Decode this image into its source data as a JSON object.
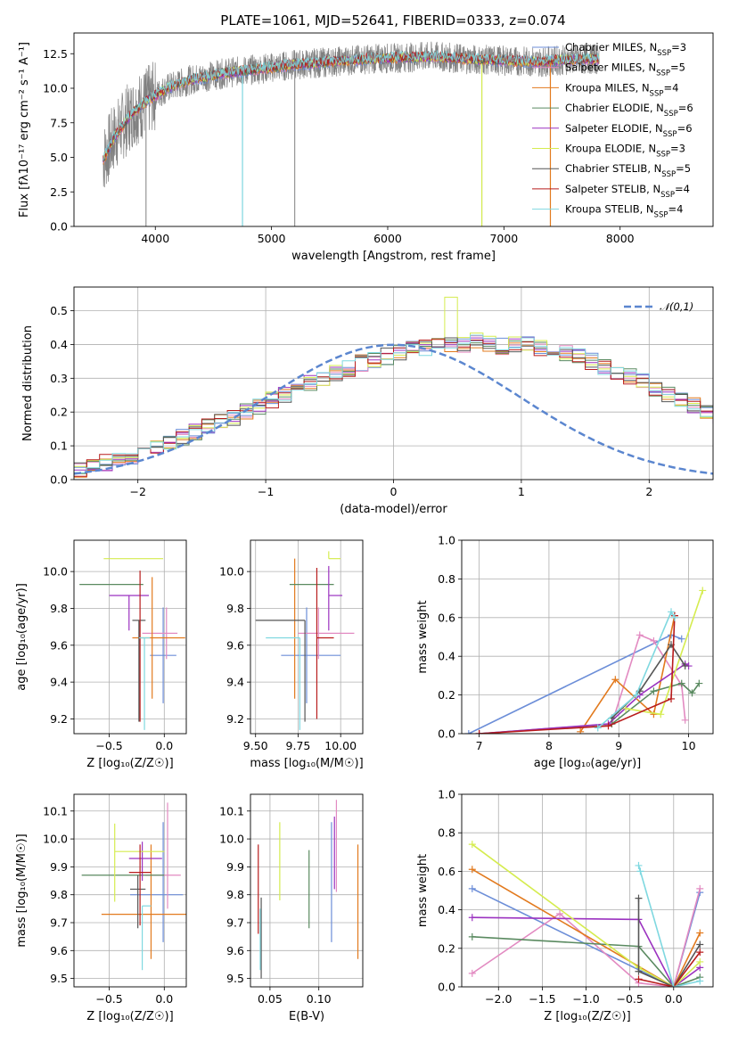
{
  "figure": {
    "title": "PLATE=1061, MJD=52641, FIBERID=0333, z=0.074"
  },
  "chart_data": [
    {
      "id": "spectrum",
      "type": "line",
      "xlabel": "wavelength [Angstrom, rest frame]",
      "ylabel": "Flux [fλ10⁻¹⁷ erg cm⁻² s⁻¹ A⁻¹]",
      "xlim": [
        3300,
        8800
      ],
      "ylim": [
        0,
        14
      ],
      "xticks": [
        4000,
        5000,
        6000,
        7000,
        8000
      ],
      "yticks": [
        0.0,
        2.5,
        5.0,
        7.5,
        10.0,
        12.5
      ],
      "grid": false,
      "legend_position": "right",
      "data_continuum": {
        "x": [
          3550,
          3650,
          3800,
          3950,
          4100,
          4300,
          4600,
          4900,
          5200,
          5500,
          5800,
          6100,
          6400,
          6700,
          7000,
          7300,
          7600,
          7800
        ],
        "y": [
          4.8,
          6.5,
          8.2,
          9.2,
          10.0,
          10.6,
          11.1,
          11.4,
          11.7,
          11.9,
          12.1,
          12.2,
          12.3,
          12.1,
          12.0,
          11.9,
          12.1,
          12.1
        ]
      },
      "spectrum_range": [
        3550,
        7820
      ],
      "absorption_lines": [
        {
          "x": 4750,
          "y": 0.0
        },
        {
          "x": 5200,
          "y": 0.0
        },
        {
          "x": 3920,
          "y": 0.0
        },
        {
          "x": 6810,
          "y": 0.0
        },
        {
          "x": 7400,
          "y": 0.0
        }
      ],
      "series": [
        {
          "label": "Chabrier MILES, N",
          "sub": "SSP",
          "suffix": "=3",
          "color": "#6c8ed8"
        },
        {
          "label": "Salpeter MILES, N",
          "sub": "SSP",
          "suffix": "=5",
          "color": "#e28ac1"
        },
        {
          "label": "Kroupa MILES, N",
          "sub": "SSP",
          "suffix": "=4",
          "color": "#e27a1e"
        },
        {
          "label": "Chabrier ELODIE, N",
          "sub": "SSP",
          "suffix": "=6",
          "color": "#5a8a60"
        },
        {
          "label": "Salpeter ELODIE, N",
          "sub": "SSP",
          "suffix": "=6",
          "color": "#9b32c0"
        },
        {
          "label": "Kroupa ELODIE, N",
          "sub": "SSP",
          "suffix": "=3",
          "color": "#d5ec4f"
        },
        {
          "label": "Chabrier STELIB, N",
          "sub": "SSP",
          "suffix": "=5",
          "color": "#555555"
        },
        {
          "label": "Salpeter STELIB, N",
          "sub": "SSP",
          "suffix": "=4",
          "color": "#b81c1c"
        },
        {
          "label": "Kroupa STELIB, N",
          "sub": "SSP",
          "suffix": "=4",
          "color": "#7fd8e0"
        }
      ]
    },
    {
      "id": "residuals",
      "type": "line",
      "xlabel": "(data-model)/error",
      "ylabel": "Normed distribution",
      "xlim": [
        -2.5,
        2.5
      ],
      "ylim": [
        0,
        0.57
      ],
      "xticks": [
        -2,
        -1,
        0,
        1,
        2
      ],
      "yticks": [
        0.0,
        0.1,
        0.2,
        0.3,
        0.4,
        0.5
      ],
      "grid": true,
      "legend_position": "top-right",
      "legend_label": "𝒩(0,1)",
      "gaussian_color": "#5b86cf",
      "bin_width": 0.1,
      "histogram_base": [
        0.025,
        0.03,
        0.04,
        0.05,
        0.06,
        0.07,
        0.08,
        0.095,
        0.11,
        0.125,
        0.14,
        0.155,
        0.17,
        0.185,
        0.2,
        0.215,
        0.235,
        0.25,
        0.27,
        0.285,
        0.3,
        0.315,
        0.33,
        0.345,
        0.355,
        0.365,
        0.375,
        0.385,
        0.39,
        0.395,
        0.4,
        0.4,
        0.41,
        0.4,
        0.395,
        0.4,
        0.4,
        0.39,
        0.385,
        0.375,
        0.365,
        0.35,
        0.335,
        0.32,
        0.305,
        0.29,
        0.27,
        0.255,
        0.24,
        0.22,
        0.205,
        0.19,
        0.175,
        0.16,
        0.145,
        0.13,
        0.115,
        0.1,
        0.09,
        0.08,
        0.07,
        0.06,
        0.05,
        0.045,
        0.04,
        0.035,
        0.03,
        0.028,
        0.025,
        0.022,
        0.02
      ],
      "highlight_peak": {
        "x": 0.45,
        "y": 0.54
      }
    },
    {
      "id": "age-vs-Z",
      "type": "scatter",
      "xlabel": "Z [log₁₀(Z/Z☉)]",
      "ylabel": "age  [log₁₀(age/yr)]",
      "xlim": [
        -0.82,
        0.2
      ],
      "ylim": [
        9.12,
        10.17
      ],
      "xticks": [
        -0.5,
        0.0
      ],
      "yticks": [
        9.2,
        9.4,
        9.6,
        9.8,
        10.0
      ],
      "grid": true,
      "points": [
        {
          "x": -0.01,
          "y": 9.545,
          "xerr": [
            0.12,
            0.12
          ],
          "yerr": [
            0.26,
            0.26
          ],
          "color": "#6c8ed8"
        },
        {
          "x": 0.02,
          "y": 9.665,
          "xerr": [
            0.22,
            0.1
          ],
          "yerr": [
            0.14,
            0.14
          ],
          "color": "#e28ac1"
        },
        {
          "x": -0.11,
          "y": 9.64,
          "xerr": [
            0.18,
            0.3
          ],
          "yerr": [
            0.33,
            0.33
          ],
          "color": "#e27a1e"
        },
        {
          "x": -0.48,
          "y": 9.93,
          "xerr": [
            0.29,
            0.29
          ],
          "yerr": [
            0.0,
            0.0
          ],
          "color": "#5a8a60"
        },
        {
          "x": -0.32,
          "y": 9.87,
          "xerr": [
            0.18,
            0.18
          ],
          "yerr": [
            0.19,
            0.0
          ],
          "color": "#9b32c0"
        },
        {
          "x": -0.28,
          "y": 10.07,
          "xerr": [
            0.27,
            0.27
          ],
          "yerr": [
            0.0,
            0.0
          ],
          "color": "#d5ec4f"
        },
        {
          "x": -0.23,
          "y": 9.735,
          "xerr": [
            0.06,
            0.06
          ],
          "yerr": [
            0.55,
            0.0
          ],
          "color": "#555555"
        },
        {
          "x": -0.22,
          "y": 9.625,
          "xerr": [
            0.0,
            0.0
          ],
          "yerr": [
            0.44,
            0.38
          ],
          "color": "#b81c1c"
        },
        {
          "x": -0.18,
          "y": 9.64,
          "xerr": [
            0.05,
            0.05
          ],
          "yerr": [
            0.5,
            0.0
          ],
          "color": "#7fd8e0"
        }
      ]
    },
    {
      "id": "age-vs-mass",
      "type": "scatter",
      "xlabel": "mass [log₁₀(M/M☉)]",
      "ylabel": "",
      "xlim": [
        9.47,
        10.13
      ],
      "ylim": [
        9.12,
        10.17
      ],
      "xticks": [
        9.5,
        9.75,
        10.0
      ],
      "yticks": [
        9.2,
        9.4,
        9.6,
        9.8,
        10.0
      ],
      "grid": true,
      "points": [
        {
          "x": 9.8,
          "y": 9.545,
          "xerr": [
            0.15,
            0.2
          ],
          "yerr": [
            0.26,
            0.26
          ],
          "color": "#6c8ed8"
        },
        {
          "x": 9.87,
          "y": 9.665,
          "xerr": [
            0.12,
            0.21
          ],
          "yerr": [
            0.14,
            0.14
          ],
          "color": "#e28ac1"
        },
        {
          "x": 9.73,
          "y": 9.64,
          "xerr": [
            0.0,
            0.0
          ],
          "yerr": [
            0.33,
            0.43
          ],
          "color": "#e27a1e"
        },
        {
          "x": 9.83,
          "y": 9.93,
          "xerr": [
            0.13,
            0.13
          ],
          "yerr": [
            0.0,
            0.0
          ],
          "color": "#5a8a60"
        },
        {
          "x": 9.93,
          "y": 9.87,
          "xerr": [
            0.0,
            0.08
          ],
          "yerr": [
            0.19,
            0.16
          ],
          "color": "#9b32c0"
        },
        {
          "x": 9.93,
          "y": 10.07,
          "xerr": [
            0.0,
            0.07
          ],
          "yerr": [
            0.0,
            0.04
          ],
          "color": "#d5ec4f"
        },
        {
          "x": 9.79,
          "y": 9.735,
          "xerr": [
            0.29,
            0.0
          ],
          "yerr": [
            0.55,
            0.0
          ],
          "color": "#555555"
        },
        {
          "x": 9.86,
          "y": 9.64,
          "xerr": [
            0.0,
            0.1
          ],
          "yerr": [
            0.44,
            0.38
          ],
          "color": "#b81c1c"
        },
        {
          "x": 9.76,
          "y": 9.64,
          "xerr": [
            0.2,
            0.0
          ],
          "yerr": [
            0.5,
            0.0
          ],
          "color": "#7fd8e0"
        }
      ]
    },
    {
      "id": "weight-vs-age",
      "type": "line",
      "xlabel": "age  [log₁₀(age/yr)]",
      "ylabel": "mass weight",
      "xlim": [
        6.75,
        10.35
      ],
      "ylim": [
        0,
        1
      ],
      "xticks": [
        7,
        8,
        9,
        10
      ],
      "yticks": [
        0.0,
        0.2,
        0.4,
        0.6,
        0.8,
        1.0
      ],
      "grid": true,
      "series": [
        {
          "color": "#6c8ed8",
          "x": [
            6.85,
            9.75,
            9.9
          ],
          "y": [
            0.0,
            0.51,
            0.49
          ]
        },
        {
          "color": "#e28ac1",
          "x": [
            8.9,
            9.3,
            9.5,
            9.9,
            9.95
          ],
          "y": [
            0.05,
            0.51,
            0.48,
            0.25,
            0.07
          ]
        },
        {
          "color": "#e27a1e",
          "x": [
            8.45,
            8.95,
            9.5,
            9.8
          ],
          "y": [
            0.01,
            0.28,
            0.1,
            0.61
          ]
        },
        {
          "color": "#5a8a60",
          "x": [
            7.0,
            8.9,
            9.5,
            9.9,
            10.05,
            10.15
          ],
          "y": [
            0.0,
            0.05,
            0.22,
            0.26,
            0.21,
            0.26
          ]
        },
        {
          "color": "#9b32c0",
          "x": [
            7.0,
            8.85,
            9.3,
            9.95,
            10.0
          ],
          "y": [
            0.0,
            0.05,
            0.2,
            0.36,
            0.35
          ]
        },
        {
          "color": "#d5ec4f",
          "x": [
            9.1,
            9.6,
            10.2
          ],
          "y": [
            0.13,
            0.1,
            0.74
          ]
        },
        {
          "color": "#555555",
          "x": [
            8.9,
            9.3,
            9.75,
            9.95
          ],
          "y": [
            0.08,
            0.22,
            0.46,
            0.35
          ]
        },
        {
          "color": "#b81c1c",
          "x": [
            7.0,
            8.85,
            9.75,
            9.8
          ],
          "y": [
            0.0,
            0.04,
            0.18,
            0.61
          ]
        },
        {
          "color": "#7fd8e0",
          "x": [
            8.7,
            9.25,
            9.75,
            9.8
          ],
          "y": [
            0.03,
            0.2,
            0.63,
            0.6
          ]
        }
      ]
    },
    {
      "id": "mass-vs-Z",
      "type": "scatter",
      "xlabel": "Z [log₁₀(Z/Z☉)]",
      "ylabel": "mass [log₁₀(M/M☉)]",
      "xlim": [
        -0.82,
        0.2
      ],
      "ylim": [
        9.47,
        10.16
      ],
      "xticks": [
        -0.5,
        0.0
      ],
      "yticks": [
        9.5,
        9.6,
        9.7,
        9.8,
        9.9,
        10.0,
        10.1
      ],
      "grid": true,
      "points": [
        {
          "x": -0.01,
          "y": 9.8,
          "xerr": [
            0.3,
            0.18
          ],
          "yerr": [
            0.17,
            0.26
          ],
          "color": "#6c8ed8"
        },
        {
          "x": 0.03,
          "y": 9.87,
          "xerr": [
            0.2,
            0.12
          ],
          "yerr": [
            0.12,
            0.26
          ],
          "color": "#e28ac1"
        },
        {
          "x": -0.12,
          "y": 9.73,
          "xerr": [
            0.45,
            0.33
          ],
          "yerr": [
            0.16,
            0.25
          ],
          "color": "#e27a1e"
        },
        {
          "x": -0.42,
          "y": 9.87,
          "xerr": [
            0.33,
            0.42
          ],
          "yerr": [
            0.0,
            0.0
          ],
          "color": "#5a8a60"
        },
        {
          "x": -0.2,
          "y": 9.93,
          "xerr": [
            0.12,
            0.18
          ],
          "yerr": [
            0.08,
            0.06
          ],
          "color": "#9b32c0"
        },
        {
          "x": -0.45,
          "y": 9.955,
          "xerr": [
            0.0,
            0.45
          ],
          "yerr": [
            0.18,
            0.1
          ],
          "color": "#d5ec4f"
        },
        {
          "x": -0.24,
          "y": 9.82,
          "xerr": [
            0.07,
            0.07
          ],
          "yerr": [
            0.14,
            0.05
          ],
          "color": "#555555"
        },
        {
          "x": -0.22,
          "y": 9.88,
          "xerr": [
            0.1,
            0.1
          ],
          "yerr": [
            0.19,
            0.1
          ],
          "color": "#b81c1c"
        },
        {
          "x": -0.2,
          "y": 9.76,
          "xerr": [
            0.0,
            0.08
          ],
          "yerr": [
            0.23,
            0.0
          ],
          "color": "#7fd8e0"
        }
      ]
    },
    {
      "id": "mass-vs-EBV",
      "type": "scatter",
      "xlabel": "E(B-V)",
      "ylabel": "",
      "xlim": [
        0.03,
        0.145
      ],
      "ylim": [
        9.47,
        10.16
      ],
      "xticks": [
        0.05,
        0.1
      ],
      "yticks": [
        9.5,
        9.6,
        9.7,
        9.8,
        9.9,
        10.0,
        10.1
      ],
      "grid": true,
      "points": [
        {
          "x": 0.113,
          "y": 9.8,
          "yerr": [
            0.17,
            0.26
          ],
          "color": "#6c8ed8"
        },
        {
          "x": 0.118,
          "y": 9.95,
          "yerr": [
            0.14,
            0.19
          ],
          "color": "#e28ac1"
        },
        {
          "x": 0.14,
          "y": 9.76,
          "yerr": [
            0.19,
            0.22
          ],
          "color": "#e27a1e"
        },
        {
          "x": 0.09,
          "y": 9.82,
          "yerr": [
            0.14,
            0.14
          ],
          "color": "#5a8a60"
        },
        {
          "x": 0.116,
          "y": 9.95,
          "yerr": [
            0.13,
            0.13
          ],
          "color": "#9b32c0"
        },
        {
          "x": 0.06,
          "y": 9.92,
          "yerr": [
            0.14,
            0.14
          ],
          "color": "#d5ec4f"
        },
        {
          "x": 0.041,
          "y": 9.79,
          "yerr": [
            0.29,
            0.0
          ],
          "color": "#555555"
        },
        {
          "x": 0.038,
          "y": 9.82,
          "yerr": [
            0.16,
            0.16
          ],
          "color": "#b81c1c"
        },
        {
          "x": 0.04,
          "y": 9.64,
          "yerr": [
            0.11,
            0.11
          ],
          "color": "#7fd8e0"
        }
      ]
    },
    {
      "id": "weight-vs-Z",
      "type": "line",
      "xlabel": "Z [log₁₀(Z/Z☉)]",
      "ylabel": "mass weight",
      "xlim": [
        -2.42,
        0.45
      ],
      "ylim": [
        0,
        1
      ],
      "xticks": [
        -2.0,
        -1.5,
        -1.0,
        -0.5,
        0.0
      ],
      "yticks": [
        0.0,
        0.2,
        0.4,
        0.6,
        0.8,
        1.0
      ],
      "grid": true,
      "series": [
        {
          "color": "#6c8ed8",
          "x": [
            -2.3,
            0.0,
            0.3
          ],
          "y": [
            0.51,
            0.0,
            0.49
          ]
        },
        {
          "color": "#e28ac1",
          "x": [
            -2.3,
            -1.3,
            -0.4,
            0.0,
            0.3
          ],
          "y": [
            0.07,
            0.38,
            0.02,
            0.0,
            0.51
          ]
        },
        {
          "color": "#e27a1e",
          "x": [
            -2.3,
            0.0,
            0.3
          ],
          "y": [
            0.61,
            0.0,
            0.28
          ]
        },
        {
          "color": "#5a8a60",
          "x": [
            -2.3,
            -0.4,
            0.0,
            0.3
          ],
          "y": [
            0.26,
            0.21,
            0.0,
            0.05
          ]
        },
        {
          "color": "#9b32c0",
          "x": [
            -2.3,
            -0.4,
            0.0,
            0.3
          ],
          "y": [
            0.36,
            0.35,
            0.0,
            0.1
          ]
        },
        {
          "color": "#d5ec4f",
          "x": [
            -2.3,
            -0.4,
            0.0,
            0.3
          ],
          "y": [
            0.74,
            0.1,
            0.0,
            0.13
          ]
        },
        {
          "color": "#555555",
          "x": [
            -0.4,
            -0.4,
            0.0,
            0.3
          ],
          "y": [
            0.46,
            0.08,
            0.0,
            0.22
          ]
        },
        {
          "color": "#b81c1c",
          "x": [
            -0.4,
            0.0,
            0.3
          ],
          "y": [
            0.04,
            0.0,
            0.18
          ]
        },
        {
          "color": "#7fd8e0",
          "x": [
            -0.4,
            -0.38,
            0.0,
            0.3
          ],
          "y": [
            0.63,
            0.6,
            0.0,
            0.03
          ]
        }
      ]
    }
  ]
}
